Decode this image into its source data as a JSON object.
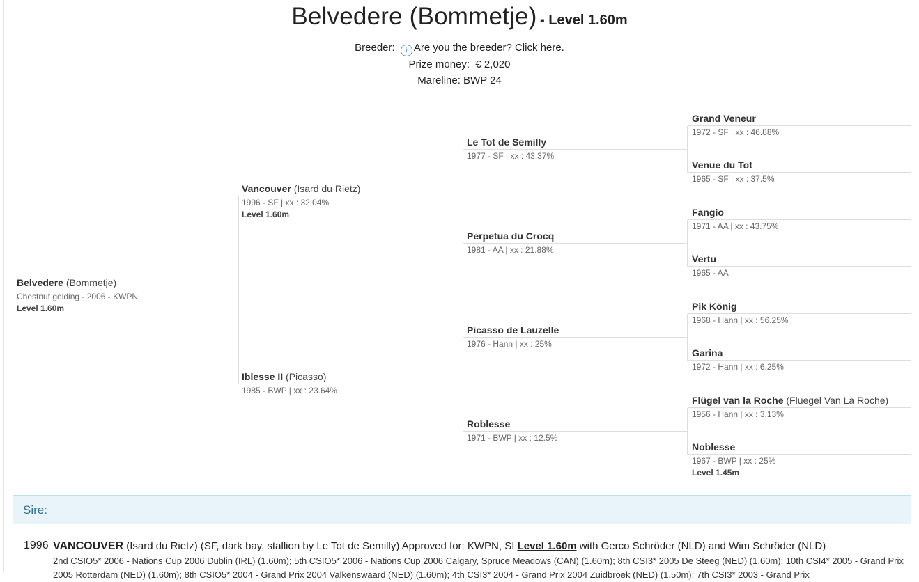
{
  "header": {
    "horse_name": "Belvedere (Bommetje)",
    "level": "- Level 1.60m",
    "breeder_label": "Breeder:",
    "breeder_link": "Are you the breeder? Click here.",
    "prize_label": "Prize money:",
    "prize_value": "€ 2,020",
    "mareline": "Mareline: BWP 24"
  },
  "pedigree": {
    "subject": {
      "name": "Belvedere",
      "alias": "(Bommetje)",
      "info": "Chestnut gelding - 2006 - KWPN",
      "level": "Level 1.60m"
    },
    "sire": {
      "name": "Vancouver",
      "alias": "(Isard du Rietz)",
      "info": "1996 - SF | xx : 32.04%",
      "level": "Level 1.60m"
    },
    "dam": {
      "name": "Iblesse II",
      "alias": "(Picasso)",
      "info": "1985 - BWP | xx : 23.64%"
    },
    "ss": {
      "name": "Le Tot de Semilly",
      "info": "1977 - SF | xx : 43.37%"
    },
    "sd": {
      "name": "Perpetua du Crocq",
      "info": "1981 - AA | xx : 21.88%"
    },
    "ds": {
      "name": "Picasso de Lauzelle",
      "info": "1976 - Hann | xx : 25%"
    },
    "dd": {
      "name": "Roblesse",
      "info": "1971 - BWP | xx : 12.5%"
    },
    "sss": {
      "name": "Grand Veneur",
      "info": "1972 - SF | xx : 46.88%"
    },
    "ssd": {
      "name": "Venue du Tot",
      "info": "1965 - SF | xx : 37.5%"
    },
    "sds": {
      "name": "Fangio",
      "info": "1971 - AA | xx : 43.75%"
    },
    "sdd": {
      "name": "Vertu",
      "info": "1965 - AA"
    },
    "dss": {
      "name": "Pik König",
      "info": "1968 - Hann | xx : 56.25%"
    },
    "dsd": {
      "name": "Garina",
      "info": "1972 - Hann | xx : 6.25%"
    },
    "dds": {
      "name": "Flügel van la Roche",
      "alias": "(Fluegel Van La Roche)",
      "info": "1956 - Hann | xx : 3.13%"
    },
    "ddd": {
      "name": "Noblesse",
      "info": "1967 - BWP | xx : 25%",
      "level": "Level 1.45m"
    }
  },
  "sire_section": {
    "heading": "Sire:",
    "year": "1996",
    "name": "VANCOUVER",
    "desc": " (Isard du Rietz) (SF, dark bay, stallion by Le Tot de Semilly) Approved for: KWPN, SI ",
    "level": "Level 1.60m",
    "riders": " with Gerco Schröder (NLD) and Wim Schröder (NLD)",
    "results": "2nd CSIO5* 2006 - Nations Cup 2006 Dublin (IRL) (1.60m); 5th CSIO5* 2006 - Nations Cup 2006 Calgary, Spruce Meadows (CAN) (1.60m); 8th CSI3* 2005 De Steeg (NED) (1.60m); 10th CSI4* 2005 - Grand Prix 2005 Rotterdam (NED) (1.60m); 8th CSIO5* 2004 - Grand Prix 2004 Valkenswaard (NED) (1.60m); 4th CSI3* 2004 - Grand Prix 2004 Zuidbroek (NED) (1.50m); 7th CSI3* 2003 - Grand Prix"
  }
}
